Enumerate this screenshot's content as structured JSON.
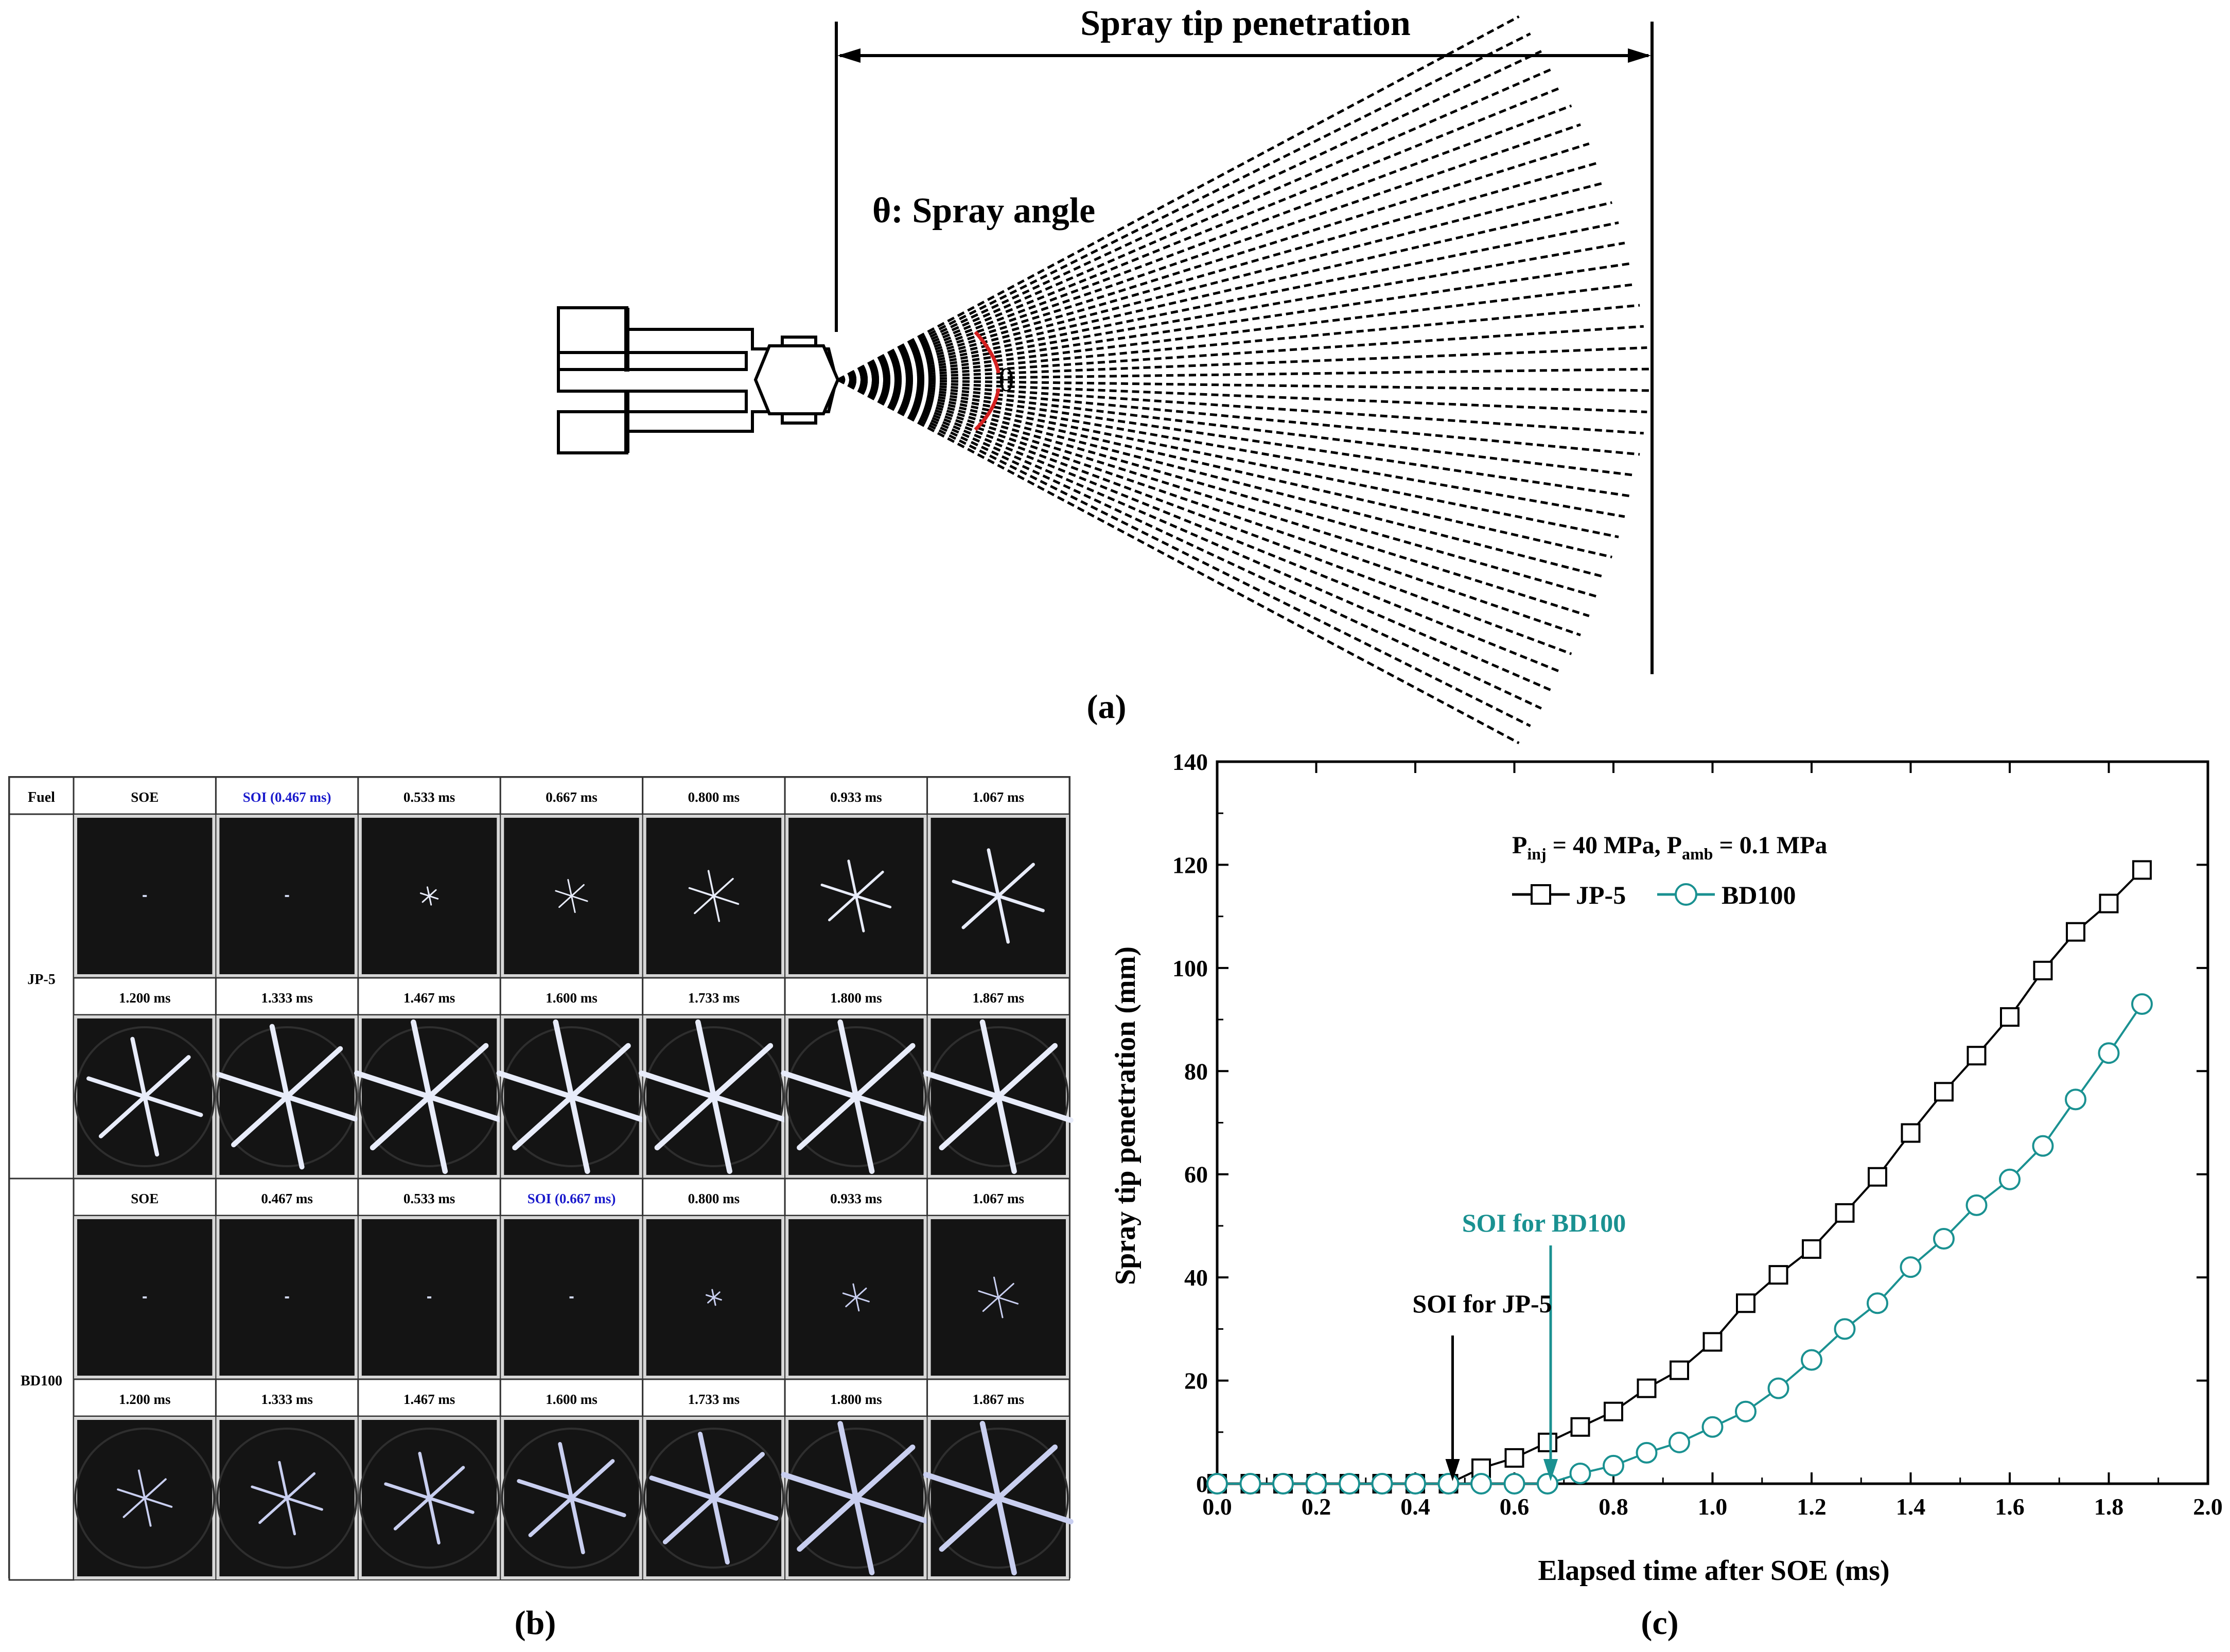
{
  "panel_a": {
    "label": "(a)",
    "penetration_label": "Spray tip penetration",
    "angle_symbol": "θ",
    "angle_label": "θ: Spray angle"
  },
  "panel_b": {
    "label": "(b)",
    "corner_header": "Fuel",
    "fuels": [
      {
        "name": "JP-5",
        "row1_times": [
          "SOE",
          "SOI (0.467 ms)",
          "0.533  ms",
          "0.667  ms",
          "0.800  ms",
          "0.933  ms",
          "1.067  ms"
        ],
        "row2_times": [
          "1.200  ms",
          "1.333  ms",
          "1.467  ms",
          "1.600  ms",
          "1.733  ms",
          "1.800  ms",
          "1.867  ms"
        ],
        "soi_index": 1
      },
      {
        "name": "BD100",
        "row1_times": [
          "SOE",
          "0.467  ms",
          "0.533  ms",
          "SOI (0.667  ms)",
          "0.800  ms",
          "0.933  ms",
          "1.067  ms"
        ],
        "row2_times": [
          "1.200  ms",
          "1.333  ms",
          "1.467  ms",
          "1.600  ms",
          "1.733  ms",
          "1.800  ms",
          "1.867  ms"
        ],
        "soi_index": 3
      }
    ],
    "soi_color": "#1a1acc"
  },
  "panel_c": {
    "label": "(c)"
  },
  "chart_data": {
    "type": "line",
    "xlabel": "Elapsed time after SOE (ms)",
    "ylabel": "Spray tip penetration (mm)",
    "xlim": [
      0.0,
      2.0
    ],
    "ylim": [
      0,
      140
    ],
    "xticks": [
      "0.0",
      "0.2",
      "0.4",
      "0.6",
      "0.8",
      "1.0",
      "1.2",
      "1.4",
      "1.6",
      "1.8",
      "2.0"
    ],
    "yticks": [
      "0",
      "20",
      "40",
      "60",
      "80",
      "100",
      "120",
      "140"
    ],
    "conditions": {
      "p_inj_sym": "P",
      "p_inj_sub": "inj",
      "p_inj_val": " = 40 MPa, ",
      "p_amb_sym": "P",
      "p_amb_sub": "amb",
      "p_amb_val": " = 0.1 MPa"
    },
    "series": [
      {
        "name": "JP-5",
        "color": "#000000",
        "marker": "square",
        "x": [
          0.0,
          0.067,
          0.133,
          0.2,
          0.267,
          0.333,
          0.4,
          0.467,
          0.533,
          0.6,
          0.667,
          0.733,
          0.8,
          0.867,
          0.933,
          1.0,
          1.067,
          1.133,
          1.2,
          1.267,
          1.333,
          1.4,
          1.467,
          1.533,
          1.6,
          1.667,
          1.733,
          1.8,
          1.867
        ],
        "y": [
          0,
          0,
          0,
          0,
          0,
          0,
          0,
          0,
          3,
          5,
          8,
          11,
          14,
          18.5,
          22,
          27.5,
          35,
          40.5,
          45.5,
          52.5,
          59.5,
          68,
          76,
          83,
          90.5,
          99.5,
          107,
          112.5,
          119
        ]
      },
      {
        "name": "BD100",
        "color": "#1a9191",
        "marker": "circle",
        "x": [
          0.0,
          0.067,
          0.133,
          0.2,
          0.267,
          0.333,
          0.4,
          0.467,
          0.533,
          0.6,
          0.667,
          0.733,
          0.8,
          0.867,
          0.933,
          1.0,
          1.067,
          1.133,
          1.2,
          1.267,
          1.333,
          1.4,
          1.467,
          1.533,
          1.6,
          1.667,
          1.733,
          1.8,
          1.867
        ],
        "y": [
          0,
          0,
          0,
          0,
          0,
          0,
          0,
          0,
          0,
          0,
          0,
          2,
          3.5,
          6,
          8,
          11,
          14,
          18.5,
          24,
          30,
          35,
          42,
          47.5,
          54,
          59,
          65.5,
          74.5,
          83.5,
          93
        ]
      }
    ],
    "annotations": [
      {
        "text": "SOI for JP-5",
        "x": 0.467,
        "color": "#000000"
      },
      {
        "text": "SOI for BD100",
        "x": 0.667,
        "color": "#1a9191"
      }
    ],
    "grid": false,
    "legend_position": "top-left"
  }
}
